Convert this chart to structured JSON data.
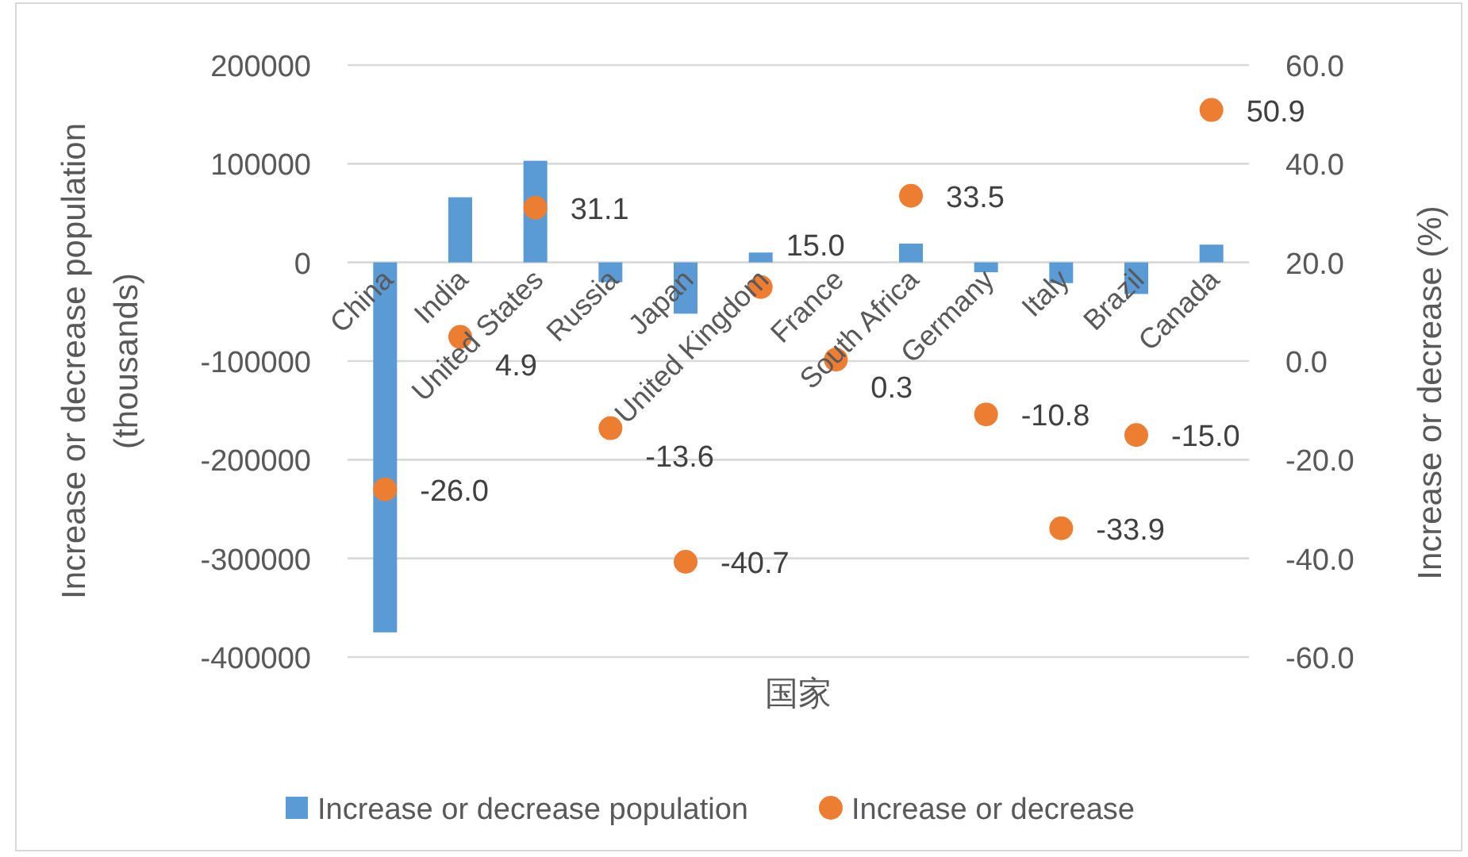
{
  "chart_data": {
    "type": "bar",
    "xlabel": "国家",
    "ylabel": "Increase or decrease population (thousands)",
    "y2label": "Increase or decrease (%)",
    "categories": [
      "China",
      "India",
      "United States",
      "Russia",
      "Japan",
      "United Kingdom",
      "France",
      "South Africa",
      "Germany",
      "Italy",
      "Brazil",
      "Canada"
    ],
    "series": [
      {
        "name": "Increase or decrease population",
        "color": "#5b9bd5",
        "values": [
          -375000,
          66000,
          103000,
          -20000,
          -52000,
          10000,
          0,
          19000,
          -10000,
          -21000,
          -32000,
          18000
        ]
      },
      {
        "name": "Increase or decrease",
        "type": "scatter",
        "axis": "y2",
        "color": "#ed7d31",
        "values": [
          -26.0,
          4.9,
          31.1,
          -13.6,
          -40.7,
          15.0,
          0.3,
          33.5,
          -10.8,
          -33.9,
          -15.0,
          50.9
        ],
        "value_labels": [
          "-26.0",
          "4.9",
          "31.1",
          "-13.6",
          "-40.7",
          "15.0",
          "0.3",
          "33.5",
          "-10.8",
          "-33.9",
          "-15.0",
          "50.9"
        ]
      }
    ],
    "ylim": [
      -400000,
      200000
    ],
    "yticks": [
      -400000,
      -300000,
      -200000,
      -100000,
      0,
      100000,
      200000
    ],
    "y2lim": [
      -60,
      60
    ],
    "y2ticks": [
      {
        "value": -60,
        "label": "-60.0"
      },
      {
        "value": -40,
        "label": "-40.0"
      },
      {
        "value": -20,
        "label": "-20.0"
      },
      {
        "value": 0,
        "label": "0.0"
      },
      {
        "value": 20,
        "label": "20.0"
      },
      {
        "value": 40,
        "label": "40.0"
      },
      {
        "value": 60,
        "label": "60.0"
      }
    ],
    "grid": "y",
    "legend": "bottom",
    "marker": "circle"
  }
}
